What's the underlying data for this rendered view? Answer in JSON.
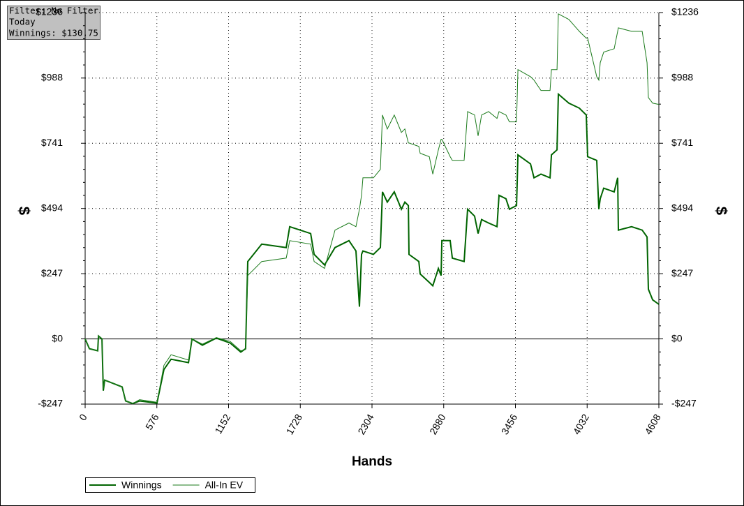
{
  "chart_data": {
    "type": "line",
    "info_box": [
      "Filter: No Filter",
      "Today",
      "Winnings: $130.75"
    ],
    "xlabel": "Hands",
    "ylabel": "$",
    "mirror_y_axis": true,
    "grid": true,
    "legend": "bottom-left",
    "xlim": [
      0,
      4608
    ],
    "xticks": [
      0,
      576,
      1152,
      1728,
      2304,
      2880,
      3456,
      4032,
      4608
    ],
    "ylim": [
      -247,
      1236
    ],
    "yticks": [
      {
        "value": -247,
        "label": "-$247"
      },
      {
        "value": 0,
        "label": "$0"
      },
      {
        "value": 247,
        "label": "$247"
      },
      {
        "value": 494,
        "label": "$494"
      },
      {
        "value": 741,
        "label": "$741"
      },
      {
        "value": 988,
        "label": "$988"
      },
      {
        "value": 1236,
        "label": "$1236"
      }
    ],
    "x": [
      0,
      34,
      101,
      107,
      135,
      146,
      157,
      297,
      325,
      381,
      437,
      577,
      633,
      690,
      830,
      858,
      942,
      1054,
      1166,
      1250,
      1289,
      1306,
      1418,
      1615,
      1643,
      1811,
      1839,
      1923,
      2007,
      2119,
      2175,
      2203,
      2220,
      2231,
      2315,
      2371,
      2388,
      2427,
      2483,
      2540,
      2568,
      2596,
      2601,
      2680,
      2691,
      2764,
      2792,
      2837,
      2859,
      2865,
      2932,
      2949,
      3044,
      3072,
      3128,
      3156,
      3184,
      3240,
      3308,
      3324,
      3380,
      3408,
      3465,
      3476,
      3577,
      3605,
      3661,
      3734,
      3745,
      3790,
      3801,
      3885,
      3969,
      4025,
      4036,
      4109,
      4126,
      4137,
      4165,
      4249,
      4277,
      4283,
      4389,
      4474,
      4513,
      4524,
      4558,
      4608
    ],
    "series": [
      {
        "name": "Winnings",
        "color": "#006400",
        "width": 2,
        "values": [
          0,
          -37,
          -45,
          11,
          0,
          -196,
          -156,
          -182,
          -235,
          -245,
          -235,
          -243,
          -116,
          -77,
          -90,
          0,
          -24,
          3,
          -16,
          -50,
          -37,
          293,
          359,
          346,
          425,
          399,
          320,
          280,
          346,
          372,
          333,
          122,
          320,
          333,
          320,
          346,
          557,
          518,
          557,
          491,
          518,
          505,
          320,
          293,
          246,
          214,
          201,
          267,
          240,
          372,
          372,
          306,
          293,
          491,
          465,
          399,
          452,
          439,
          425,
          544,
          531,
          491,
          505,
          697,
          663,
          610,
          624,
          610,
          697,
          716,
          927,
          893,
          874,
          848,
          690,
          676,
          491,
          531,
          571,
          557,
          610,
          412,
          425,
          412,
          386,
          188,
          148,
          131
        ]
      },
      {
        "name": "All-In EV",
        "color": "#1a7a1a",
        "width": 1,
        "values": [
          0,
          -37,
          -45,
          11,
          0,
          -190,
          -156,
          -182,
          -235,
          -245,
          -230,
          -240,
          -100,
          -60,
          -80,
          0,
          -20,
          5,
          -10,
          -45,
          -40,
          240,
          293,
          306,
          372,
          359,
          293,
          267,
          412,
          439,
          425,
          491,
          544,
          610,
          610,
          642,
          848,
          795,
          848,
          782,
          795,
          742,
          742,
          729,
          703,
          690,
          624,
          716,
          756,
          756,
          690,
          676,
          676,
          861,
          848,
          769,
          848,
          861,
          835,
          861,
          848,
          822,
          822,
          1020,
          993,
          980,
          941,
          941,
          1020,
          1020,
          1231,
          1210,
          1165,
          1139,
          1139,
          993,
          980,
          1046,
          1086,
          1099,
          1165,
          1178,
          1165,
          1165,
          1046,
          914,
          893,
          888
        ]
      }
    ]
  }
}
